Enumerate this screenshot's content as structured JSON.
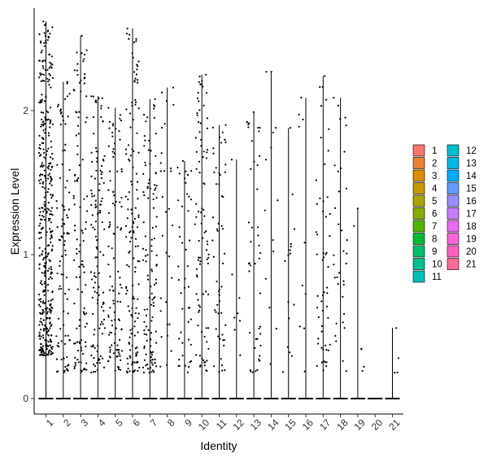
{
  "chart_data": {
    "type": "violin",
    "xlabel": "Identity",
    "ylabel": "Expression Level",
    "categories": [
      "1",
      "2",
      "3",
      "4",
      "5",
      "6",
      "7",
      "8",
      "9",
      "10",
      "11",
      "12",
      "13",
      "14",
      "15",
      "16",
      "17",
      "18",
      "19",
      "20",
      "21"
    ],
    "y_ticks": [
      "0",
      "1",
      "2"
    ],
    "ylim": [
      -0.1,
      2.75
    ],
    "series_max": [
      2.62,
      2.2,
      2.52,
      2.1,
      2.02,
      2.57,
      2.08,
      2.16,
      1.65,
      2.25,
      1.9,
      1.66,
      1.99,
      2.27,
      1.88,
      2.09,
      2.24,
      2.09,
      1.32,
      0.0,
      0.49
    ],
    "series_min": [
      0,
      0,
      0,
      0,
      0,
      0,
      0,
      0,
      0,
      0,
      0,
      0,
      0,
      0,
      0,
      0,
      0,
      0,
      0,
      0,
      0
    ],
    "point_counts": [
      420,
      95,
      110,
      120,
      105,
      140,
      120,
      30,
      45,
      90,
      55,
      8,
      45,
      14,
      16,
      10,
      55,
      35,
      6,
      0,
      4
    ],
    "legend": {
      "placement": "right",
      "entries": [
        {
          "label": "1",
          "color": "#F8766D"
        },
        {
          "label": "2",
          "color": "#EB8335"
        },
        {
          "label": "3",
          "color": "#DA8F00"
        },
        {
          "label": "4",
          "color": "#C49A00"
        },
        {
          "label": "5",
          "color": "#A9A400"
        },
        {
          "label": "6",
          "color": "#86AC00"
        },
        {
          "label": "7",
          "color": "#53B400"
        },
        {
          "label": "8",
          "color": "#00BA38"
        },
        {
          "label": "9",
          "color": "#00BE6D"
        },
        {
          "label": "10",
          "color": "#00C094"
        },
        {
          "label": "11",
          "color": "#00C0B5"
        },
        {
          "label": "12",
          "color": "#00BDD0"
        },
        {
          "label": "13",
          "color": "#00B6E6"
        },
        {
          "label": "14",
          "color": "#00ABFD"
        },
        {
          "label": "15",
          "color": "#619CFF"
        },
        {
          "label": "16",
          "color": "#9A8FFF"
        },
        {
          "label": "17",
          "color": "#C77CFF"
        },
        {
          "label": "18",
          "color": "#E76BF3"
        },
        {
          "label": "19",
          "color": "#F865D7"
        },
        {
          "label": "20",
          "color": "#FF61C3"
        },
        {
          "label": "21",
          "color": "#FF6A98"
        }
      ]
    },
    "grid": false
  }
}
